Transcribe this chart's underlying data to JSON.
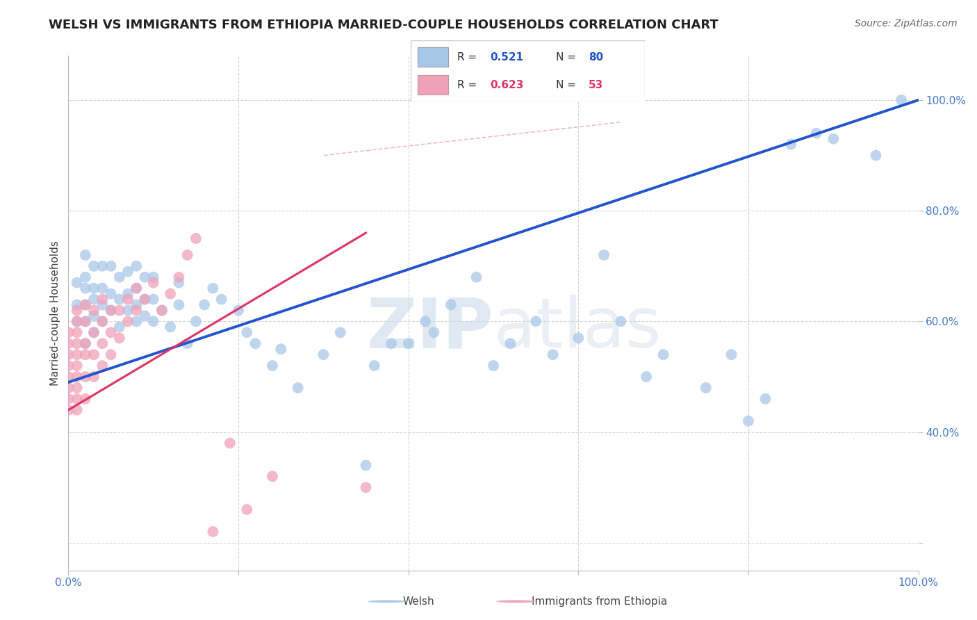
{
  "title": "WELSH VS IMMIGRANTS FROM ETHIOPIA MARRIED-COUPLE HOUSEHOLDS CORRELATION CHART",
  "source": "Source: ZipAtlas.com",
  "ylabel": "Married-couple Households",
  "legend_blue_r": "0.521",
  "legend_blue_n": "80",
  "legend_pink_r": "0.623",
  "legend_pink_n": "53",
  "blue_color": "#a8c8e8",
  "pink_color": "#f0a0b8",
  "blue_line_color": "#2255cc",
  "pink_line_color": "#dd3366",
  "diag_line_color": "#f0b0c0",
  "grid_color": "#cccccc",
  "watermark_color": "#ccddf0",
  "xlim": [
    0.0,
    1.0
  ],
  "ylim": [
    0.15,
    1.08
  ],
  "blue_line_x": [
    0.0,
    1.0
  ],
  "blue_line_y": [
    0.49,
    1.0
  ],
  "pink_line_x": [
    0.0,
    0.35
  ],
  "pink_line_y": [
    0.44,
    0.76
  ],
  "diag_line_x": [
    0.3,
    0.65
  ],
  "diag_line_y": [
    0.9,
    0.96
  ],
  "blue_scatter_x": [
    0.01,
    0.01,
    0.01,
    0.02,
    0.02,
    0.02,
    0.02,
    0.02,
    0.02,
    0.03,
    0.03,
    0.03,
    0.03,
    0.03,
    0.04,
    0.04,
    0.04,
    0.04,
    0.05,
    0.05,
    0.05,
    0.06,
    0.06,
    0.06,
    0.07,
    0.07,
    0.07,
    0.08,
    0.08,
    0.08,
    0.08,
    0.09,
    0.09,
    0.09,
    0.1,
    0.1,
    0.1,
    0.11,
    0.12,
    0.13,
    0.13,
    0.14,
    0.15,
    0.16,
    0.17,
    0.18,
    0.2,
    0.21,
    0.22,
    0.24,
    0.25,
    0.27,
    0.3,
    0.32,
    0.35,
    0.36,
    0.38,
    0.4,
    0.42,
    0.43,
    0.45,
    0.48,
    0.5,
    0.52,
    0.55,
    0.57,
    0.6,
    0.63,
    0.65,
    0.68,
    0.7,
    0.75,
    0.78,
    0.8,
    0.82,
    0.85,
    0.88,
    0.9,
    0.95,
    0.98
  ],
  "blue_scatter_y": [
    0.6,
    0.63,
    0.67,
    0.56,
    0.6,
    0.63,
    0.66,
    0.68,
    0.72,
    0.58,
    0.61,
    0.64,
    0.66,
    0.7,
    0.6,
    0.63,
    0.66,
    0.7,
    0.62,
    0.65,
    0.7,
    0.59,
    0.64,
    0.68,
    0.62,
    0.65,
    0.69,
    0.6,
    0.63,
    0.66,
    0.7,
    0.61,
    0.64,
    0.68,
    0.6,
    0.64,
    0.68,
    0.62,
    0.59,
    0.63,
    0.67,
    0.56,
    0.6,
    0.63,
    0.66,
    0.64,
    0.62,
    0.58,
    0.56,
    0.52,
    0.55,
    0.48,
    0.54,
    0.58,
    0.34,
    0.52,
    0.56,
    0.56,
    0.6,
    0.58,
    0.63,
    0.68,
    0.52,
    0.56,
    0.6,
    0.54,
    0.57,
    0.72,
    0.6,
    0.5,
    0.54,
    0.48,
    0.54,
    0.42,
    0.46,
    0.92,
    0.94,
    0.93,
    0.9,
    1.0
  ],
  "pink_scatter_x": [
    0.0,
    0.0,
    0.0,
    0.0,
    0.0,
    0.0,
    0.0,
    0.0,
    0.01,
    0.01,
    0.01,
    0.01,
    0.01,
    0.01,
    0.01,
    0.01,
    0.01,
    0.01,
    0.02,
    0.02,
    0.02,
    0.02,
    0.02,
    0.02,
    0.03,
    0.03,
    0.03,
    0.03,
    0.04,
    0.04,
    0.04,
    0.04,
    0.05,
    0.05,
    0.05,
    0.06,
    0.06,
    0.07,
    0.07,
    0.08,
    0.08,
    0.09,
    0.1,
    0.11,
    0.12,
    0.13,
    0.14,
    0.15,
    0.17,
    0.19,
    0.21,
    0.24,
    0.35
  ],
  "pink_scatter_y": [
    0.44,
    0.46,
    0.48,
    0.5,
    0.52,
    0.54,
    0.56,
    0.58,
    0.44,
    0.46,
    0.48,
    0.5,
    0.52,
    0.54,
    0.56,
    0.58,
    0.6,
    0.62,
    0.46,
    0.5,
    0.54,
    0.56,
    0.6,
    0.63,
    0.5,
    0.54,
    0.58,
    0.62,
    0.52,
    0.56,
    0.6,
    0.64,
    0.54,
    0.58,
    0.62,
    0.57,
    0.62,
    0.6,
    0.64,
    0.62,
    0.66,
    0.64,
    0.67,
    0.62,
    0.65,
    0.68,
    0.72,
    0.75,
    0.22,
    0.38,
    0.26,
    0.32,
    0.3
  ],
  "ytick_vals": [
    0.2,
    0.4,
    0.6,
    0.8,
    1.0
  ],
  "ytick_labels": [
    "",
    "40.0%",
    "60.0%",
    "80.0%",
    "100.0%"
  ],
  "xtick_vals": [
    0.0,
    0.2,
    0.4,
    0.6,
    0.8,
    1.0
  ],
  "xtick_labels": [
    "0.0%",
    "",
    "",
    "",
    "",
    "100.0%"
  ]
}
